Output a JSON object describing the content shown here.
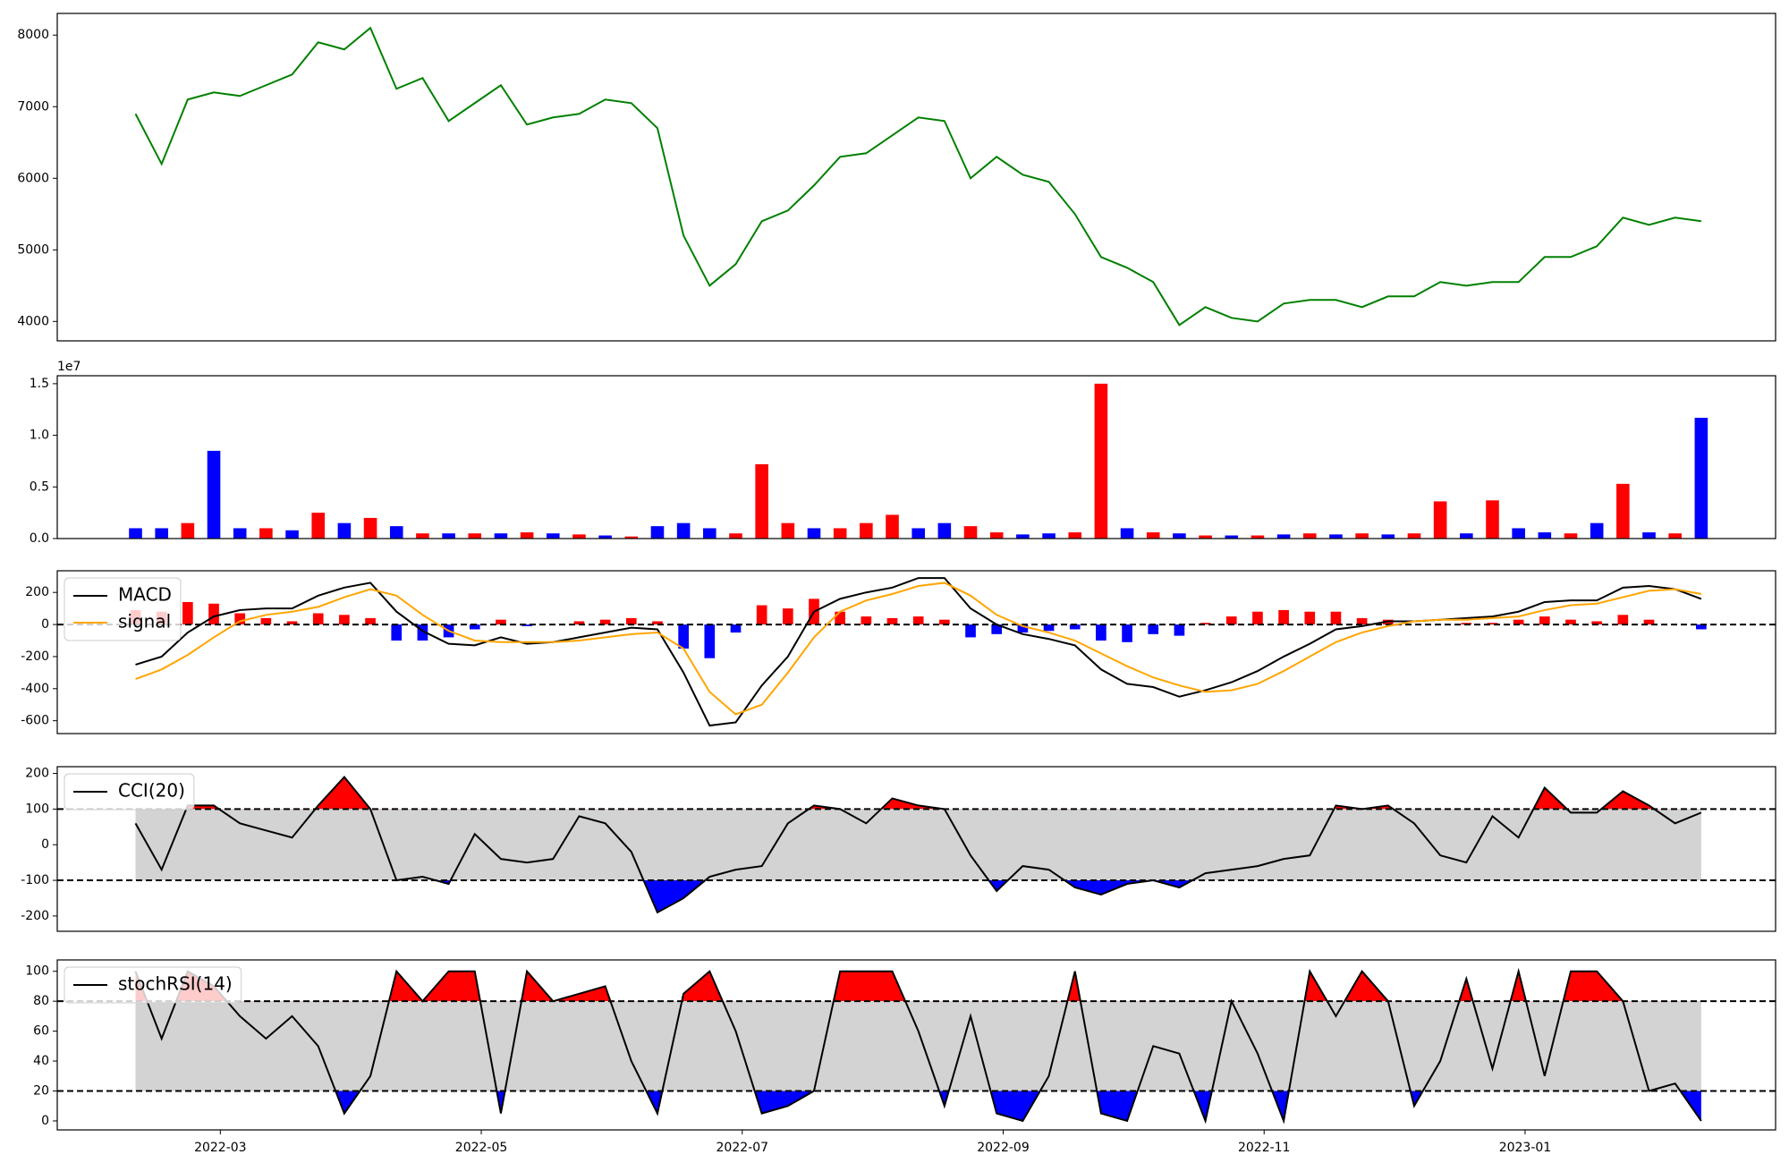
{
  "chart_data": [
    {
      "type": "line",
      "color": "green",
      "x": [
        0.35,
        0.55,
        0.75,
        0.95,
        1.15,
        1.35,
        1.55,
        1.75,
        1.95,
        2.15,
        2.35,
        2.55,
        2.75,
        2.95,
        3.15,
        3.35,
        3.55,
        3.75,
        3.95,
        4.15,
        4.35,
        4.55,
        4.75,
        4.95,
        5.15,
        5.35,
        5.55,
        5.75,
        5.95,
        6.15,
        6.35,
        6.55,
        6.75,
        6.95,
        7.15,
        7.35,
        7.55,
        7.75,
        7.95,
        8.15,
        8.35,
        8.55,
        8.75,
        8.95,
        9.15,
        9.35,
        9.55,
        9.75,
        9.95,
        10.15,
        10.35,
        10.55,
        10.75,
        10.95,
        11.15,
        11.35,
        11.55,
        11.75,
        11.95,
        12.15,
        12.35
      ],
      "values": [
        6900,
        6200,
        7100,
        7200,
        7150,
        7300,
        7450,
        7900,
        7800,
        8100,
        7250,
        7400,
        6800,
        7050,
        7300,
        6750,
        6850,
        6900,
        7100,
        7050,
        6700,
        5200,
        4500,
        4800,
        5400,
        5550,
        5900,
        6300,
        6350,
        6600,
        6850,
        6800,
        6000,
        6300,
        6050,
        5950,
        5500,
        4900,
        4750,
        4550,
        3950,
        4200,
        4050,
        4000,
        4250,
        4300,
        4300,
        4200,
        4350,
        4350,
        4550,
        4500,
        4550,
        4550,
        4900,
        4900,
        5050,
        5450,
        5350,
        5450,
        5400
      ],
      "xlim": [
        -0.25,
        12.92
      ],
      "ylim": [
        3729,
        8303
      ],
      "yticks": [
        4000,
        5000,
        6000,
        7000,
        8000
      ]
    },
    {
      "type": "bar",
      "offset_label": "1e7",
      "x": [
        0.35,
        0.55,
        0.75,
        0.95,
        1.15,
        1.35,
        1.55,
        1.75,
        1.95,
        2.15,
        2.35,
        2.55,
        2.75,
        2.95,
        3.15,
        3.35,
        3.55,
        3.75,
        3.95,
        4.15,
        4.35,
        4.55,
        4.75,
        4.95,
        5.15,
        5.35,
        5.55,
        5.75,
        5.95,
        6.15,
        6.35,
        6.55,
        6.75,
        6.95,
        7.15,
        7.35,
        7.55,
        7.75,
        7.95,
        8.15,
        8.35,
        8.55,
        8.75,
        8.95,
        9.15,
        9.35,
        9.55,
        9.75,
        9.95,
        10.15,
        10.35,
        10.55,
        10.75,
        10.95,
        11.15,
        11.35,
        11.55,
        11.75,
        11.95,
        12.15,
        12.35
      ],
      "values": [
        0.1,
        0.1,
        0.15,
        0.85,
        0.1,
        0.1,
        0.08,
        0.25,
        0.15,
        0.2,
        0.12,
        0.05,
        0.05,
        0.05,
        0.05,
        0.06,
        0.05,
        0.04,
        0.03,
        0.02,
        0.12,
        0.15,
        0.1,
        0.05,
        0.72,
        0.15,
        0.1,
        0.1,
        0.15,
        0.23,
        0.1,
        0.15,
        0.12,
        0.06,
        0.04,
        0.05,
        0.06,
        1.5,
        0.1,
        0.06,
        0.05,
        0.03,
        0.03,
        0.03,
        0.04,
        0.05,
        0.04,
        0.05,
        0.04,
        0.05,
        0.36,
        0.05,
        0.37,
        0.1,
        0.06,
        0.05,
        0.15,
        0.53,
        0.06,
        0.05,
        1.17
      ],
      "colors": [
        "blue",
        "blue",
        "red",
        "blue",
        "blue",
        "red",
        "blue",
        "red",
        "blue",
        "red",
        "blue",
        "red",
        "blue",
        "red",
        "blue",
        "red",
        "blue",
        "red",
        "blue",
        "red",
        "blue",
        "blue",
        "blue",
        "red",
        "red",
        "red",
        "blue",
        "red",
        "red",
        "red",
        "blue",
        "blue",
        "red",
        "red",
        "blue",
        "blue",
        "red",
        "red",
        "blue",
        "red",
        "blue",
        "red",
        "blue",
        "red",
        "blue",
        "red",
        "blue",
        "red",
        "blue",
        "red",
        "red",
        "blue",
        "red",
        "blue",
        "blue",
        "red",
        "blue",
        "red",
        "blue",
        "red",
        "blue"
      ],
      "xlim": [
        -0.25,
        12.92
      ],
      "ylim": [
        0,
        1.577
      ],
      "yticks": [
        {
          "value": 0,
          "label": "0.0"
        },
        0.5,
        {
          "value": 1,
          "label": "1.0"
        },
        1.5
      ]
    },
    {
      "type": "line",
      "legend": "upper left",
      "zero_line": true,
      "x": [
        0.35,
        0.55,
        0.75,
        0.95,
        1.15,
        1.35,
        1.55,
        1.75,
        1.95,
        2.15,
        2.35,
        2.55,
        2.75,
        2.95,
        3.15,
        3.35,
        3.55,
        3.75,
        3.95,
        4.15,
        4.35,
        4.55,
        4.75,
        4.95,
        5.15,
        5.35,
        5.55,
        5.75,
        5.95,
        6.15,
        6.35,
        6.55,
        6.75,
        6.95,
        7.15,
        7.35,
        7.55,
        7.75,
        7.95,
        8.15,
        8.35,
        8.55,
        8.75,
        8.95,
        9.15,
        9.35,
        9.55,
        9.75,
        9.95,
        10.15,
        10.35,
        10.55,
        10.75,
        10.95,
        11.15,
        11.35,
        11.55,
        11.75,
        11.95,
        12.15,
        12.35
      ],
      "series": [
        {
          "name": "MACD",
          "color": "black",
          "values": [
            -250,
            -200,
            -50,
            50,
            90,
            100,
            100,
            180,
            230,
            260,
            80,
            -40,
            -120,
            -130,
            -80,
            -120,
            -110,
            -80,
            -50,
            -20,
            -30,
            -300,
            -630,
            -610,
            -380,
            -200,
            80,
            160,
            200,
            230,
            290,
            290,
            100,
            0,
            -60,
            -90,
            -130,
            -280,
            -370,
            -390,
            -450,
            -410,
            -360,
            -290,
            -200,
            -120,
            -30,
            -10,
            20,
            20,
            30,
            40,
            50,
            80,
            140,
            150,
            150,
            230,
            240,
            220,
            160
          ]
        },
        {
          "name": "signal",
          "color": "orange",
          "values": [
            -340,
            -280,
            -190,
            -80,
            20,
            60,
            80,
            110,
            170,
            220,
            180,
            60,
            -40,
            -100,
            -110,
            -110,
            -110,
            -100,
            -80,
            -60,
            -50,
            -150,
            -420,
            -560,
            -500,
            -300,
            -80,
            80,
            150,
            190,
            240,
            260,
            180,
            60,
            -10,
            -50,
            -100,
            -180,
            -260,
            -330,
            -380,
            -420,
            -410,
            -370,
            -290,
            -200,
            -110,
            -50,
            -10,
            20,
            30,
            30,
            40,
            50,
            90,
            120,
            130,
            170,
            210,
            220,
            190
          ]
        }
      ],
      "histogram": {
        "positive_color": "red",
        "negative_color": "blue",
        "values": [
          90,
          80,
          140,
          130,
          70,
          40,
          20,
          70,
          60,
          40,
          -100,
          -100,
          -80,
          -30,
          30,
          -10,
          0,
          20,
          30,
          40,
          20,
          -150,
          -210,
          -50,
          120,
          100,
          160,
          80,
          50,
          40,
          50,
          30,
          -80,
          -60,
          -50,
          -40,
          -30,
          -100,
          -110,
          -60,
          -70,
          10,
          50,
          80,
          90,
          80,
          80,
          40,
          30,
          0,
          0,
          10,
          10,
          30,
          50,
          30,
          20,
          60,
          30,
          0,
          -30
        ]
      },
      "xlim": [
        -0.25,
        12.92
      ],
      "ylim": [
        -680,
        335
      ],
      "yticks": [
        -600,
        -400,
        -200,
        0,
        200
      ]
    },
    {
      "type": "line",
      "legend": "upper left",
      "x": [
        0.35,
        0.55,
        0.75,
        0.95,
        1.15,
        1.35,
        1.55,
        1.75,
        1.95,
        2.15,
        2.35,
        2.55,
        2.75,
        2.95,
        3.15,
        3.35,
        3.55,
        3.75,
        3.95,
        4.15,
        4.35,
        4.55,
        4.75,
        4.95,
        5.15,
        5.35,
        5.55,
        5.75,
        5.95,
        6.15,
        6.35,
        6.55,
        6.75,
        6.95,
        7.15,
        7.35,
        7.55,
        7.75,
        7.95,
        8.15,
        8.35,
        8.55,
        8.75,
        8.95,
        9.15,
        9.35,
        9.55,
        9.75,
        9.95,
        10.15,
        10.35,
        10.55,
        10.75,
        10.95,
        11.15,
        11.35,
        11.55,
        11.75,
        11.95,
        12.15,
        12.35
      ],
      "series": [
        {
          "name": "CCI(20)",
          "color": "black",
          "values": [
            60,
            -70,
            110,
            110,
            60,
            40,
            20,
            110,
            190,
            100,
            -100,
            -90,
            -110,
            30,
            -40,
            -50,
            -40,
            80,
            60,
            -20,
            -190,
            -150,
            -90,
            -70,
            -60,
            60,
            110,
            100,
            60,
            130,
            110,
            100,
            -30,
            -130,
            -60,
            -70,
            -120,
            -140,
            -110,
            -100,
            -120,
            -80,
            -70,
            -60,
            -40,
            -30,
            110,
            100,
            110,
            60,
            -30,
            -50,
            80,
            20,
            160,
            90,
            90,
            150,
            110,
            60,
            90
          ]
        }
      ],
      "bands": {
        "upper": 100,
        "lower": -100,
        "upper_color": "red",
        "lower_color": "blue",
        "middle_color": "lightgray"
      },
      "xlim": [
        -0.25,
        12.92
      ],
      "ylim": [
        -243,
        219
      ],
      "yticks": [
        -200,
        -100,
        0,
        100,
        200
      ]
    },
    {
      "type": "line",
      "legend": "upper left",
      "x": [
        0.35,
        0.55,
        0.75,
        0.95,
        1.15,
        1.35,
        1.55,
        1.75,
        1.95,
        2.15,
        2.35,
        2.55,
        2.75,
        2.95,
        3.15,
        3.35,
        3.55,
        3.75,
        3.95,
        4.15,
        4.35,
        4.55,
        4.75,
        4.95,
        5.15,
        5.35,
        5.55,
        5.75,
        5.95,
        6.15,
        6.35,
        6.55,
        6.75,
        6.95,
        7.15,
        7.35,
        7.55,
        7.75,
        7.95,
        8.15,
        8.35,
        8.55,
        8.75,
        8.95,
        9.15,
        9.35,
        9.55,
        9.75,
        9.95,
        10.15,
        10.35,
        10.55,
        10.75,
        10.95,
        11.15,
        11.35,
        11.55,
        11.75,
        11.95,
        12.15,
        12.35
      ],
      "series": [
        {
          "name": "stochRSI(14)",
          "color": "black",
          "values": [
            100,
            55,
            100,
            90,
            70,
            55,
            70,
            50,
            5,
            30,
            100,
            80,
            100,
            100,
            5,
            100,
            80,
            85,
            90,
            40,
            5,
            85,
            100,
            60,
            5,
            10,
            20,
            100,
            100,
            100,
            60,
            10,
            70,
            5,
            0,
            30,
            100,
            5,
            0,
            50,
            45,
            0,
            80,
            45,
            0,
            100,
            70,
            100,
            80,
            10,
            40,
            95,
            35,
            100,
            30,
            100,
            100,
            80,
            20,
            25,
            0
          ]
        }
      ],
      "bands": {
        "upper": 80,
        "lower": 20,
        "upper_color": "red",
        "lower_color": "blue",
        "middle_color": "lightgray"
      },
      "xlim": [
        -0.25,
        12.92
      ],
      "ylim": [
        -6,
        107.6
      ],
      "yticks": [
        0,
        20,
        40,
        60,
        80,
        100
      ],
      "xticks": [
        {
          "value": 1,
          "label": "2022-03"
        },
        {
          "value": 3,
          "label": "2022-05"
        },
        {
          "value": 5,
          "label": "2022-07"
        },
        {
          "value": 7,
          "label": "2022-09"
        },
        {
          "value": 9,
          "label": "2022-11"
        },
        {
          "value": 11,
          "label": "2023-01"
        }
      ]
    }
  ]
}
